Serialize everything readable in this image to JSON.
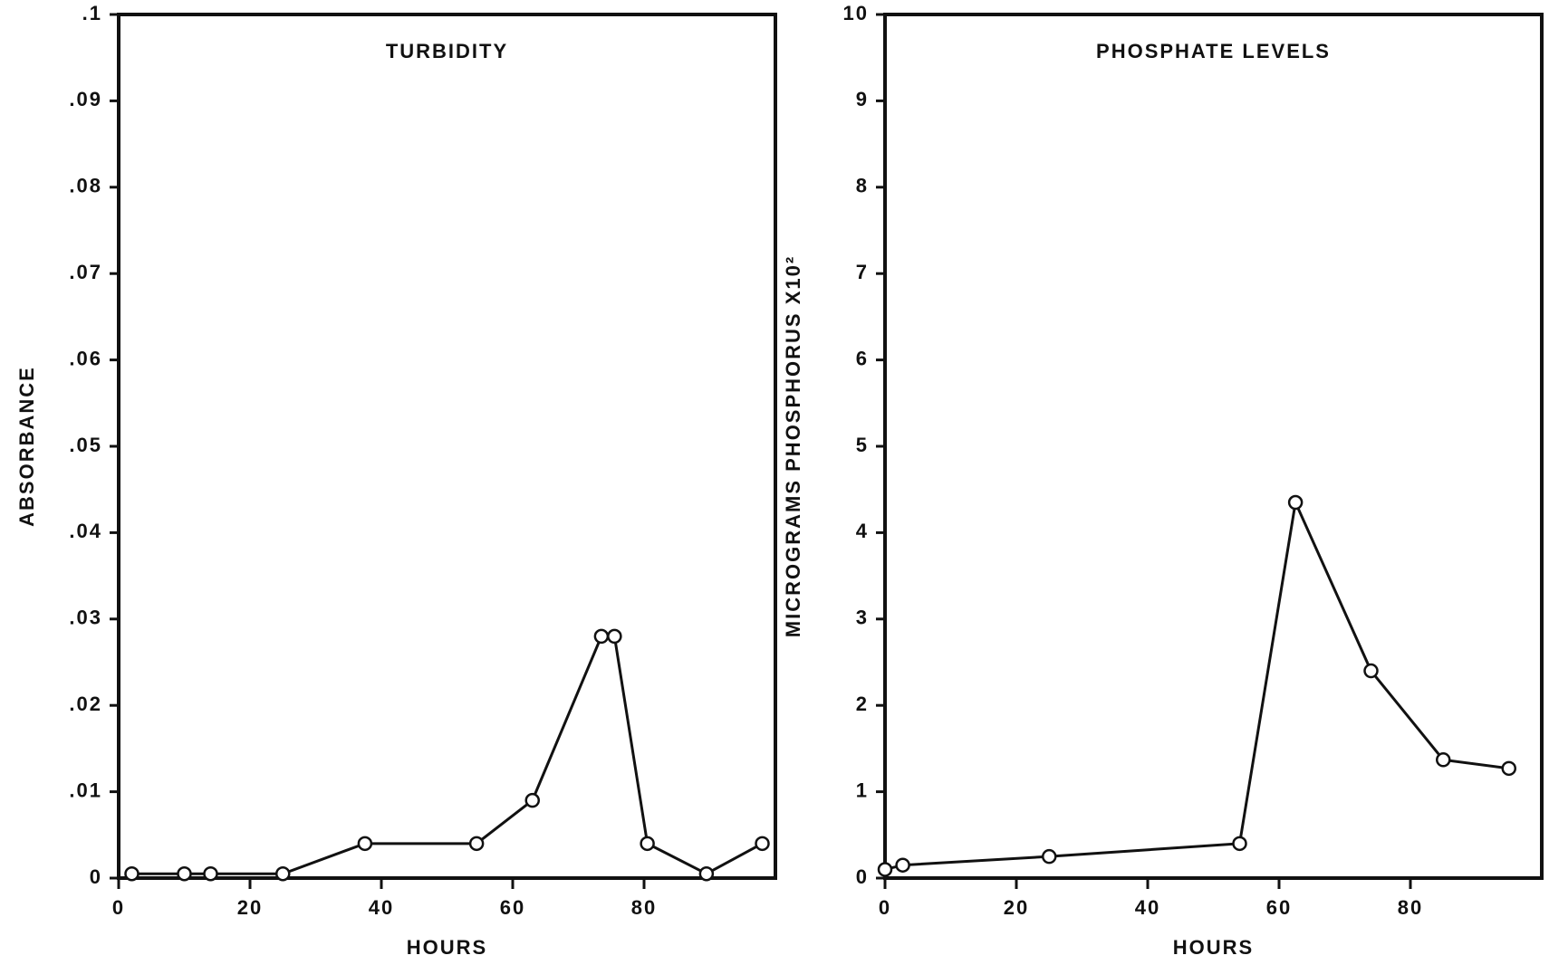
{
  "chart_data": [
    {
      "type": "line",
      "title": "TURBIDITY",
      "x_label": "HOURS",
      "y_label": "ABSORBANCE",
      "x": [
        2,
        10,
        14,
        25,
        37.5,
        54.5,
        63,
        73.5,
        75.5,
        80.5,
        89.5,
        98
      ],
      "series": [
        {
          "color": "#111111",
          "values": [
            0.0005,
            0.0005,
            0.0005,
            0.0005,
            0.004,
            0.004,
            0.009,
            0.028,
            0.028,
            0.004,
            0.0005,
            0.004
          ]
        }
      ],
      "xlim": [
        0,
        100
      ],
      "xticks": [
        0,
        20,
        40,
        60,
        80
      ],
      "ylim": [
        0,
        0.1
      ],
      "yticks": [
        0,
        {
          "value": 0.01,
          "label": ".01"
        },
        {
          "value": 0.02,
          "label": ".02"
        },
        {
          "value": 0.03,
          "label": ".03"
        },
        {
          "value": 0.04,
          "label": ".04"
        },
        {
          "value": 0.05,
          "label": ".05"
        },
        {
          "value": 0.06,
          "label": ".06"
        },
        {
          "value": 0.07,
          "label": ".07"
        },
        {
          "value": 0.08,
          "label": ".08"
        },
        {
          "value": 0.09,
          "label": ".09"
        },
        {
          "value": 0.1,
          "label": ".1"
        }
      ]
    },
    {
      "type": "line",
      "title": "PHOSPHATE LEVELS",
      "x_label": "HOURS",
      "y_label": "MICROGRAMS PHOSPHORUS X10²",
      "x": [
        0,
        2.7,
        25,
        54,
        62.5,
        74,
        85,
        95
      ],
      "series": [
        {
          "color": "#111111",
          "values": [
            0.1,
            0.15,
            0.25,
            0.4,
            4.35,
            2.4,
            1.37,
            1.27
          ]
        }
      ],
      "xlim": [
        0,
        100
      ],
      "xticks": [
        0,
        20,
        40,
        60,
        80
      ],
      "ylim": [
        0,
        10
      ],
      "yticks": [
        0,
        1,
        2,
        3,
        4,
        5,
        6,
        7,
        8,
        9,
        10
      ]
    }
  ]
}
